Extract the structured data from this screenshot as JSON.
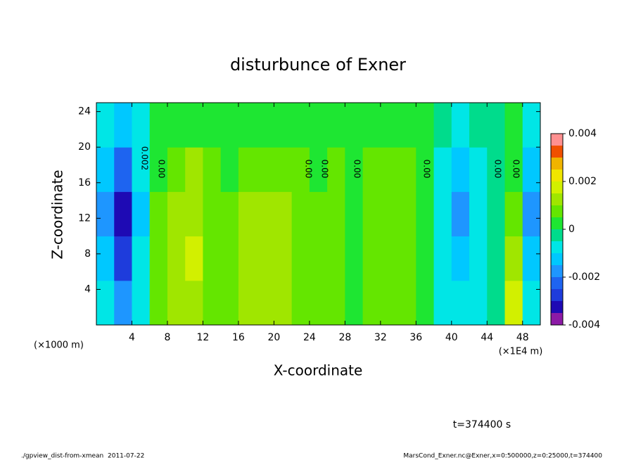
{
  "chart_data": {
    "type": "contour",
    "title": "disturbunce of Exner",
    "xlabel": "X-coordinate",
    "ylabel": "Z-coordinate",
    "x_unit_left": "(×1000 m)",
    "x_unit_right": "(×1E4 m)",
    "time_label": "t=374400 s",
    "footer_left": "./gpview_dist-from-xmean  2011-07-22",
    "footer_right": "MarsCond_Exner.nc@Exner,x=0:500000,z=0:25000,t=374400",
    "xlim": [
      0,
      50
    ],
    "xticks": [
      4,
      8,
      12,
      16,
      20,
      24,
      28,
      32,
      36,
      40,
      44,
      48
    ],
    "ylim": [
      0,
      25
    ],
    "yticks": [
      4,
      8,
      12,
      16,
      20,
      24
    ],
    "contour_labels": [
      "0.002",
      "0.00",
      "0.00",
      "0.00",
      "0.00",
      "0.00",
      "0.00",
      "0.00"
    ],
    "field": {
      "x": [
        1,
        3,
        5,
        7,
        9,
        11,
        13,
        15,
        17,
        19,
        21,
        23,
        25,
        27,
        29,
        31,
        33,
        35,
        37,
        39,
        41,
        43,
        45,
        47,
        49
      ],
      "z": [
        2.5,
        7.5,
        12.5,
        17.5,
        22.5
      ],
      "values": [
        [
          -0.001,
          -0.0018,
          -0.0006,
          0.0008,
          0.0012,
          0.0012,
          0.0008,
          0.0006,
          0.0012,
          0.0012,
          0.001,
          0.0007,
          0.0006,
          0.0008,
          0.0004,
          0.0007,
          0.0008,
          0.0008,
          0.0004,
          -0.0006,
          -0.001,
          -0.0006,
          -0.0002,
          0.0016,
          -0.001
        ],
        [
          -0.0014,
          -0.0028,
          -0.001,
          0.0006,
          0.0012,
          0.0016,
          0.0008,
          0.0006,
          0.0012,
          0.0014,
          0.0011,
          0.0008,
          0.0006,
          0.0008,
          0.0004,
          0.0007,
          0.0008,
          0.0008,
          0.0003,
          -0.0009,
          -0.0014,
          -0.0009,
          -0.0004,
          0.001,
          -0.0013
        ],
        [
          -0.0016,
          -0.0032,
          -0.0012,
          0.0006,
          0.0012,
          0.0014,
          0.0008,
          0.0006,
          0.0013,
          0.0013,
          0.0011,
          0.0008,
          0.0006,
          0.0008,
          0.0004,
          0.0007,
          0.0008,
          0.0008,
          0.0003,
          -0.001,
          -0.0016,
          -0.0008,
          -0.0004,
          0.0006,
          -0.0016
        ],
        [
          -0.0015,
          -0.0025,
          -0.001,
          0.0004,
          0.0008,
          0.001,
          0.0006,
          0.0004,
          0.0009,
          0.0009,
          0.0008,
          0.0006,
          0.0004,
          0.0006,
          0.0003,
          0.0005,
          0.0006,
          0.0006,
          0.0002,
          -0.0008,
          -0.0012,
          -0.0006,
          -0.0003,
          0.0004,
          -0.0014
        ],
        [
          -0.001,
          -0.0015,
          -0.0008,
          0.0002,
          0.0004,
          0.0004,
          0.0003,
          0.0002,
          0.0004,
          0.0004,
          0.0003,
          0.0003,
          0.0002,
          0.0003,
          0.0002,
          0.0003,
          0.0003,
          0.0003,
          0.0001,
          -0.0005,
          -0.0008,
          -0.0004,
          -0.0002,
          0.0002,
          -0.001
        ]
      ]
    },
    "colorbar": {
      "levels": [
        -0.004,
        -0.0035,
        -0.003,
        -0.0025,
        -0.002,
        -0.0015,
        -0.001,
        -0.0005,
        0,
        0.0005,
        0.001,
        0.0015,
        0.002,
        0.0025,
        0.003,
        0.0035,
        0.004
      ],
      "colors": [
        "#8c1aa6",
        "#1e0ab4",
        "#1e3cdc",
        "#1e64f0",
        "#1e96ff",
        "#00c8ff",
        "#00e6e6",
        "#00dc8c",
        "#1ee632",
        "#64e600",
        "#a0e600",
        "#d2f000",
        "#f0e600",
        "#f0b400",
        "#f05000",
        "#ff9090"
      ],
      "ylim": [
        -0.004,
        0.004
      ],
      "ticks": [
        -0.004,
        -0.002,
        0,
        0.002,
        0.004
      ]
    }
  }
}
